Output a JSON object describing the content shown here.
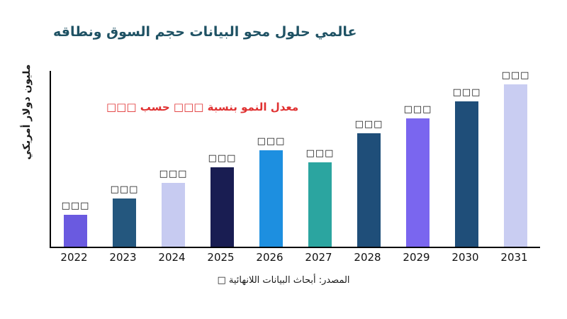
{
  "chart_data": {
    "type": "bar",
    "title": "عالمي حلول محو البيانات حجم السوق ونطاقه",
    "xlabel": "",
    "ylabel": "مليون دولار أمريكي",
    "annotation": "معدل النمو بنسبة □□□ حسب □□□",
    "source": "المصدر: أبحاث البيانات اللانهائية □",
    "categories": [
      "2022",
      "2023",
      "2024",
      "2025",
      "2026",
      "2027",
      "2028",
      "2029",
      "2030",
      "2031"
    ],
    "values": [
      45,
      68,
      90,
      112,
      136,
      119,
      160,
      181,
      205,
      229
    ],
    "bar_labels": [
      "□□□",
      "□□□",
      "□□□",
      "□□□",
      "□□□",
      "□□□",
      "□□□",
      "□□□",
      "□□□",
      "□□□"
    ],
    "colors": [
      "#6a5ae0",
      "#24577e",
      "#c7cbf1",
      "#191d52",
      "#1d8fe0",
      "#2ba5a0",
      "#1f4e79",
      "#7a66ef",
      "#1f4e79",
      "#c9cdf2"
    ],
    "ylim": [
      0,
      248
    ],
    "grid": false,
    "legend": "none",
    "annotation_color": "#e03131",
    "title_color": "#1f5264"
  }
}
